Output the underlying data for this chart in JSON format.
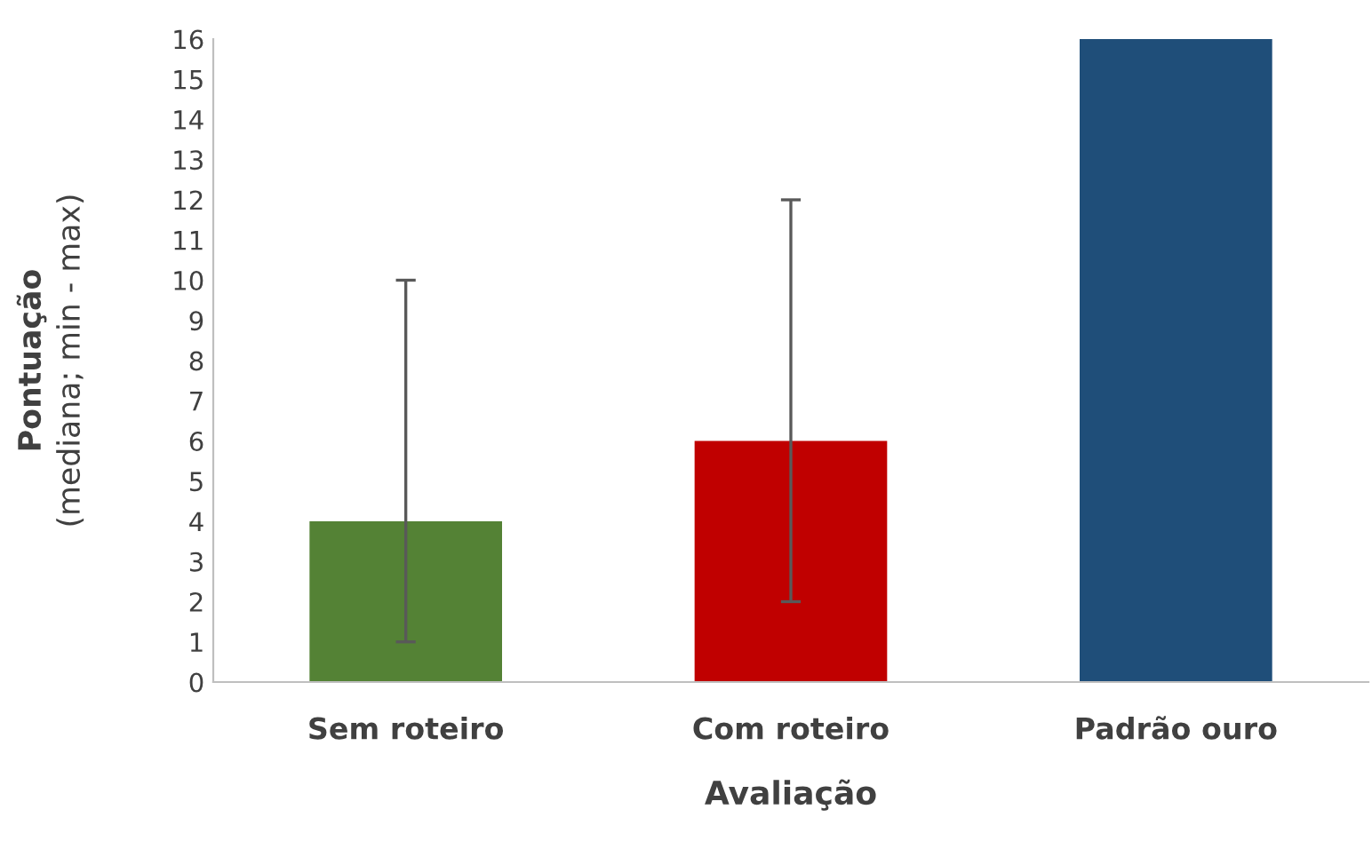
{
  "chart_data": {
    "type": "bar",
    "xlabel": "Avaliação",
    "ylabel": "Pontuação\n(mediana; min - max)",
    "categories": [
      "Sem roteiro",
      "Com roteiro",
      "Padrão ouro"
    ],
    "values": [
      4,
      6,
      16
    ],
    "colors": [
      "#548235",
      "#c00000",
      "#1f4e79"
    ],
    "errors": [
      [
        1,
        10
      ],
      [
        2,
        12
      ],
      null
    ],
    "ylim": [
      0,
      16
    ],
    "yticks": [
      0,
      1,
      2,
      3,
      4,
      5,
      6,
      7,
      8,
      9,
      10,
      11,
      12,
      13,
      14,
      15,
      16
    ],
    "grid": false,
    "legend": false
  }
}
